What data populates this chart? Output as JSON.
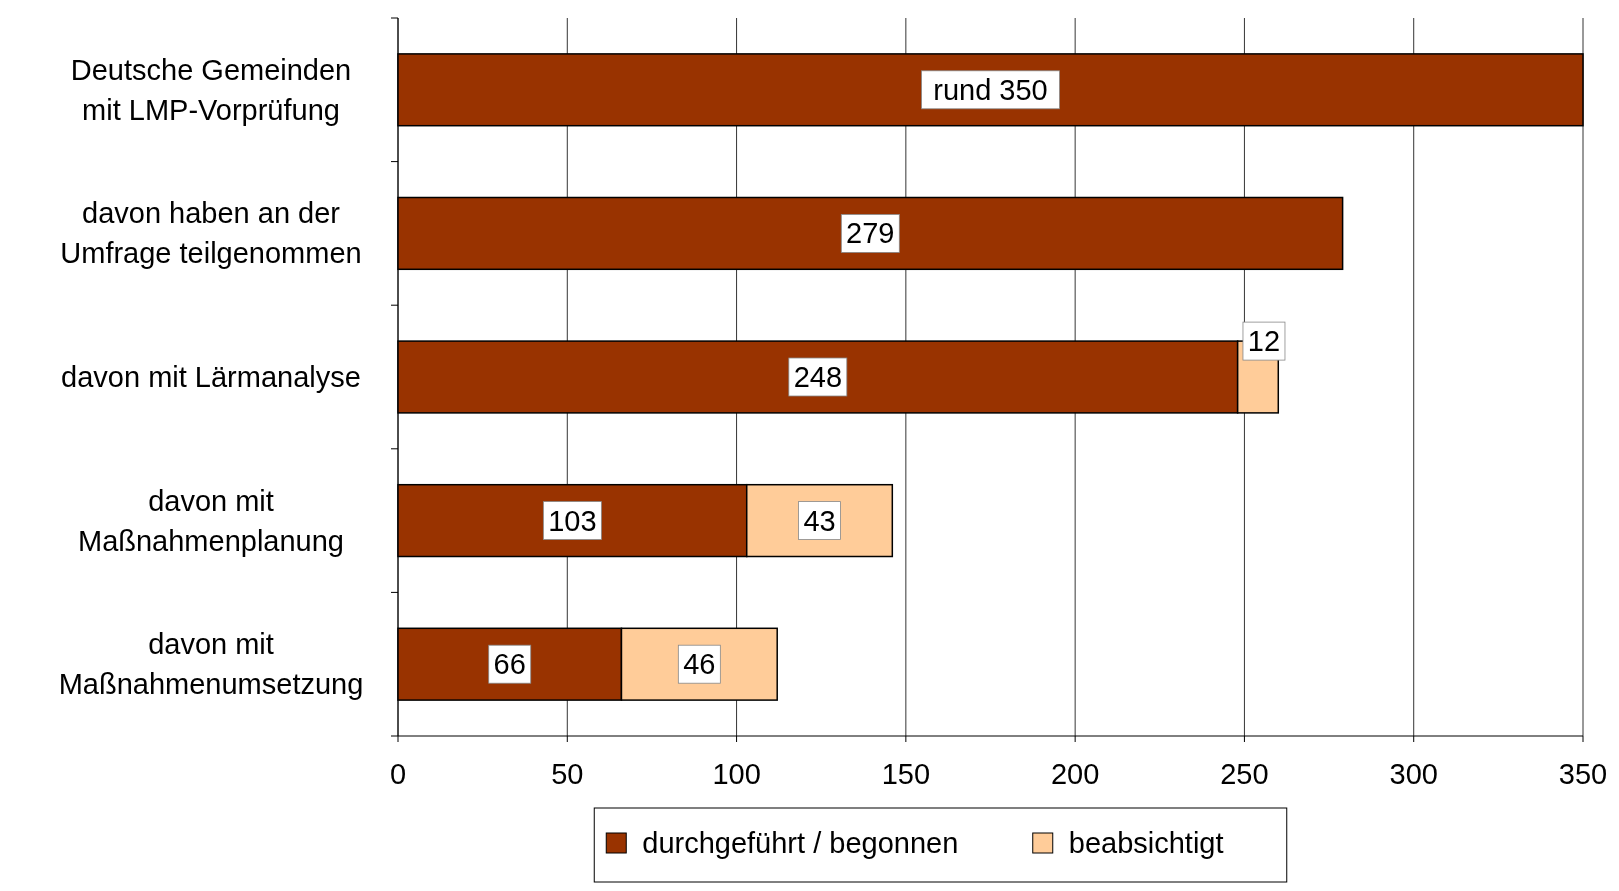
{
  "chart_data": {
    "type": "bar",
    "orientation": "horizontal",
    "stacked": true,
    "categories": [
      "Deutsche Gemeinden mit LMP-Vorprüfung",
      "davon haben an der Umfrage teilgenommen",
      "davon mit Lärmanalyse",
      "davon mit Maßnahmenplanung",
      "davon mit Maßnahmenumsetzung"
    ],
    "series": [
      {
        "name": "durchgeführt / begonnen",
        "color": "#993300",
        "values": [
          350,
          279,
          248,
          103,
          66
        ],
        "value_labels": [
          "rund 350",
          "279",
          "248",
          "103",
          "66"
        ]
      },
      {
        "name": "beabsichtigt",
        "color": "#ffcc99",
        "values": [
          null,
          null,
          12,
          43,
          46
        ],
        "value_labels": [
          null,
          null,
          "12",
          "43",
          "46"
        ]
      }
    ],
    "xlim": [
      0,
      350
    ],
    "xticks": [
      0,
      50,
      100,
      150,
      200,
      250,
      300,
      350
    ],
    "grid": "x",
    "legend": "bottom"
  }
}
